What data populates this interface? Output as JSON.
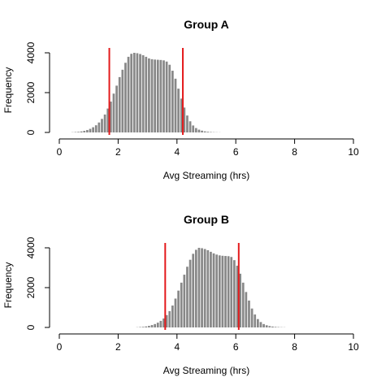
{
  "chart_data": [
    {
      "type": "bar",
      "title": "Group A",
      "xlabel": "Avg Streaming (hrs)",
      "ylabel": "Frequency",
      "xlim": [
        0,
        10
      ],
      "ylim": [
        0,
        4000
      ],
      "xticks": [
        "0",
        "2",
        "4",
        "6",
        "8",
        "10"
      ],
      "yticks": [
        "0",
        "2000",
        "4000"
      ],
      "bin_width": 0.1,
      "bin_start": 0.4,
      "counts": [
        10,
        20,
        30,
        50,
        80,
        120,
        180,
        260,
        360,
        500,
        680,
        900,
        1200,
        1550,
        1950,
        2350,
        2780,
        3150,
        3500,
        3800,
        3950,
        4000,
        3980,
        3940,
        3880,
        3800,
        3720,
        3680,
        3660,
        3650,
        3640,
        3620,
        3560,
        3400,
        3100,
        2700,
        2200,
        1700,
        1250,
        850,
        560,
        350,
        220,
        140,
        90,
        55,
        35,
        20,
        12,
        8,
        5
      ],
      "ref_lines": [
        1.7,
        4.2
      ],
      "bar_color": "#888888",
      "line_color": "#e41a1c"
    },
    {
      "type": "bar",
      "title": "Group B",
      "xlabel": "Avg Streaming (hrs)",
      "ylabel": "Frequency",
      "xlim": [
        0,
        10
      ],
      "ylim": [
        0,
        4000
      ],
      "xticks": [
        "0",
        "2",
        "4",
        "6",
        "8",
        "10"
      ],
      "yticks": [
        "0",
        "2000",
        "4000"
      ],
      "bin_width": 0.1,
      "bin_start": 2.6,
      "counts": [
        10,
        20,
        30,
        50,
        80,
        120,
        170,
        240,
        330,
        450,
        620,
        820,
        1100,
        1450,
        1850,
        2250,
        2650,
        3050,
        3400,
        3700,
        3900,
        4000,
        3980,
        3940,
        3880,
        3800,
        3720,
        3660,
        3620,
        3600,
        3590,
        3580,
        3540,
        3380,
        3100,
        2700,
        2250,
        1780,
        1350,
        950,
        650,
        420,
        270,
        170,
        110,
        70,
        45,
        28,
        18,
        12,
        8
      ],
      "ref_lines": [
        3.6,
        6.1
      ],
      "bar_color": "#888888",
      "line_color": "#e41a1c"
    }
  ]
}
